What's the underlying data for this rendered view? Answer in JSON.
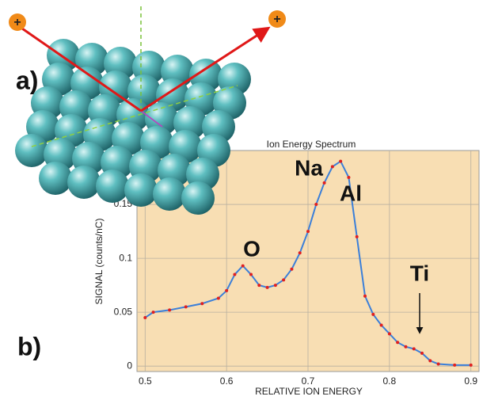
{
  "panel_labels": [
    "a)",
    "b)"
  ],
  "ion_symbol": "+",
  "chart_data": {
    "type": "line",
    "title": "Ion Energy Spectrum",
    "x_label": "RELATIVE ION ENERGY",
    "y_label": "SIGNAL (counts/nC)",
    "annotations": [
      "Na",
      "Al",
      "O",
      "Ti"
    ],
    "x": [
      0.5,
      0.51,
      0.53,
      0.55,
      0.57,
      0.59,
      0.6,
      0.61,
      0.62,
      0.63,
      0.64,
      0.65,
      0.66,
      0.67,
      0.68,
      0.69,
      0.7,
      0.71,
      0.72,
      0.73,
      0.74,
      0.75,
      0.76,
      0.77,
      0.78,
      0.79,
      0.8,
      0.81,
      0.82,
      0.83,
      0.84,
      0.85,
      0.86,
      0.88,
      0.9
    ],
    "series": [
      {
        "color": "#3b7fd9",
        "marker_color": "#e02020",
        "values": [
          0.045,
          0.05,
          0.052,
          0.055,
          0.058,
          0.063,
          0.07,
          0.085,
          0.093,
          0.085,
          0.075,
          0.073,
          0.075,
          0.08,
          0.09,
          0.105,
          0.125,
          0.15,
          0.17,
          0.185,
          0.19,
          0.175,
          0.12,
          0.065,
          0.048,
          0.038,
          0.03,
          0.022,
          0.018,
          0.016,
          0.012,
          0.005,
          0.002,
          0.001,
          0.001
        ]
      }
    ],
    "xlim": [
      0.49,
      0.91
    ],
    "ylim": [
      -0.005,
      0.2
    ],
    "xticks": [
      0.5,
      0.6,
      0.7,
      0.8,
      0.9
    ],
    "yticks": [
      0,
      0.05,
      0.1,
      0.15
    ],
    "grid": true,
    "background": "#f8deb3"
  }
}
